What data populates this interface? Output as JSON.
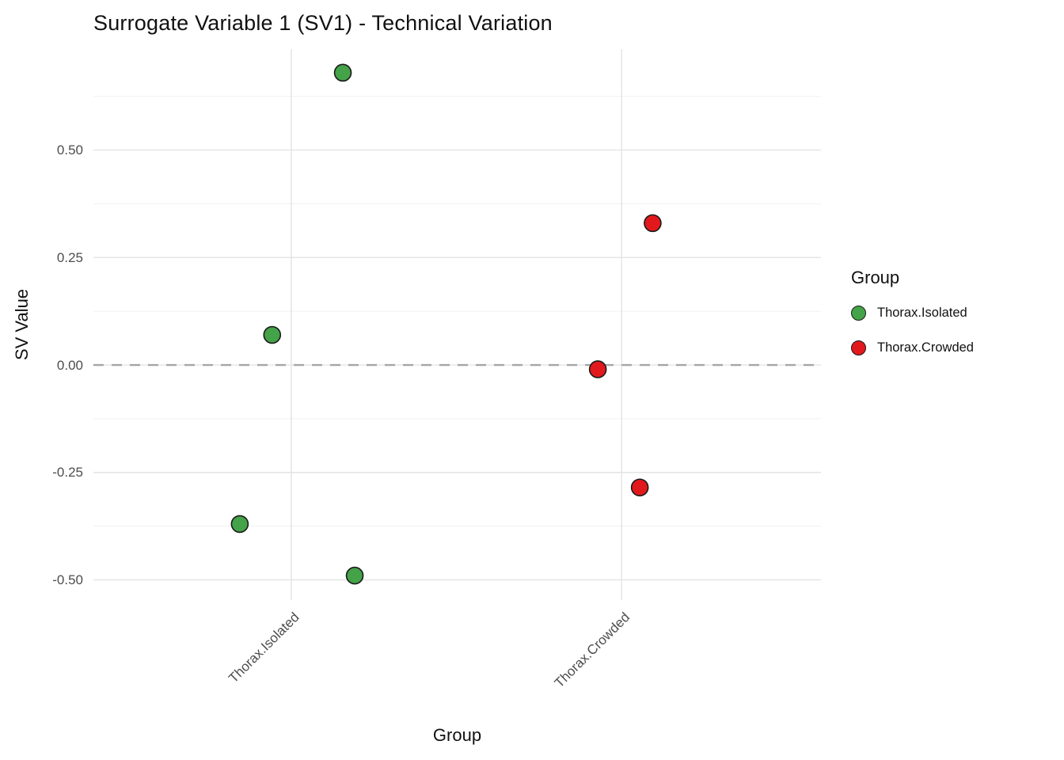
{
  "chart_data": {
    "type": "scatter",
    "title": "Surrogate Variable 1 (SV1) - Technical Variation",
    "xlabel": "Group",
    "ylabel": "SV Value",
    "categories": [
      "Thorax.Isolated",
      "Thorax.Crowded"
    ],
    "ylim": [
      -0.547,
      0.735
    ],
    "yticks": [
      0.5,
      0.25,
      0.0,
      -0.25,
      -0.5
    ],
    "ytick_labels": [
      "0.50",
      "0.25",
      "0.00",
      "-0.25",
      "-0.50"
    ],
    "minor_yticks": [
      0.625,
      0.375,
      0.125,
      -0.125,
      -0.375
    ],
    "grid": true,
    "hline": {
      "y": 0,
      "style": "dashed",
      "color": "#a6a6a6"
    },
    "legend_position": "right",
    "series": [
      {
        "name": "Thorax.Isolated",
        "color": "#44a248",
        "points": [
          {
            "x": "Thorax.Isolated",
            "jitter": 0.156,
            "y": 0.68
          },
          {
            "x": "Thorax.Isolated",
            "jitter": -0.058,
            "y": 0.07
          },
          {
            "x": "Thorax.Isolated",
            "jitter": -0.156,
            "y": -0.37
          },
          {
            "x": "Thorax.Isolated",
            "jitter": 0.192,
            "y": -0.49
          }
        ]
      },
      {
        "name": "Thorax.Crowded",
        "color": "#e2191c",
        "points": [
          {
            "x": "Thorax.Crowded",
            "jitter": 0.094,
            "y": 0.33
          },
          {
            "x": "Thorax.Crowded",
            "jitter": -0.072,
            "y": -0.01
          },
          {
            "x": "Thorax.Crowded",
            "jitter": 0.055,
            "y": -0.285
          }
        ]
      }
    ]
  },
  "legend": {
    "title": "Group",
    "items": [
      {
        "label": "Thorax.Isolated",
        "color": "#44a248"
      },
      {
        "label": "Thorax.Crowded",
        "color": "#e2191c"
      }
    ]
  }
}
